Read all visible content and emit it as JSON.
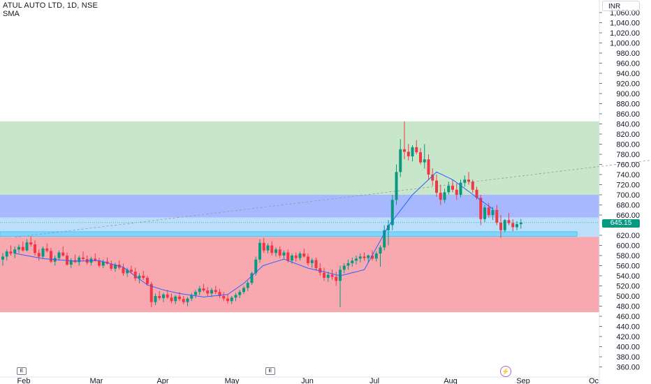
{
  "header": {
    "title": "ATUL AUTO LTD, 1D, NSE",
    "indicator": "SMA",
    "currency": "INR"
  },
  "last_price_label": "645.15",
  "markers": {
    "earnings_1": "E",
    "earnings_2": "E"
  },
  "colors": {
    "up": "#089981",
    "down": "#f23645",
    "sma": "#2962ff",
    "zone_green": "#c8e6c9",
    "zone_blue": "#a8b8ff",
    "zone_lightblue": "#bbdefb",
    "zone_support": "#81d4fa",
    "zone_red": "#f8a9b0"
  },
  "chart_data": {
    "type": "candlestick",
    "title": "ATUL AUTO LTD, 1D, NSE",
    "ylim": [
      350,
      1070
    ],
    "y_ticks": [
      "1,060.00",
      "1,040.00",
      "1,020.00",
      "1,000.00",
      "980.00",
      "960.00",
      "940.00",
      "920.00",
      "900.00",
      "880.00",
      "860.00",
      "840.00",
      "820.00",
      "800.00",
      "780.00",
      "760.00",
      "740.00",
      "720.00",
      "700.00",
      "680.00",
      "660.00",
      "645.15",
      "620.00",
      "600.00",
      "580.00",
      "560.00",
      "540.00",
      "520.00",
      "500.00",
      "480.00",
      "460.00",
      "440.00",
      "420.00",
      "400.00",
      "380.00",
      "360.00"
    ],
    "x_ticks": [
      "Feb",
      "Mar",
      "Apr",
      "May",
      "Jun",
      "Jul",
      "Aug",
      "Sep",
      "Oc"
    ],
    "zones": [
      {
        "from": 700,
        "to": 845,
        "color": "green"
      },
      {
        "from": 655,
        "to": 700,
        "color": "blue"
      },
      {
        "from": 617,
        "to": 655,
        "color": "lightblue"
      },
      {
        "from": 618,
        "to": 627,
        "color": "support"
      },
      {
        "from": 468,
        "to": 617,
        "color": "red"
      }
    ],
    "trendline": {
      "from": {
        "day": 3,
        "price": 616
      },
      "to": {
        "day": 210,
        "price": 815
      }
    },
    "ohlc": [
      [
        572,
        585,
        560,
        578
      ],
      [
        578,
        592,
        570,
        588
      ],
      [
        588,
        600,
        580,
        584
      ],
      [
        584,
        598,
        575,
        592
      ],
      [
        592,
        602,
        585,
        597
      ],
      [
        597,
        608,
        588,
        590
      ],
      [
        590,
        612,
        588,
        606
      ],
      [
        606,
        618,
        598,
        602
      ],
      [
        602,
        610,
        580,
        585
      ],
      [
        585,
        592,
        570,
        578
      ],
      [
        578,
        598,
        574,
        594
      ],
      [
        594,
        604,
        586,
        589
      ],
      [
        589,
        595,
        565,
        568
      ],
      [
        568,
        580,
        560,
        575
      ],
      [
        575,
        590,
        570,
        586
      ],
      [
        586,
        598,
        578,
        580
      ],
      [
        580,
        586,
        560,
        562
      ],
      [
        562,
        575,
        555,
        571
      ],
      [
        571,
        582,
        565,
        567
      ],
      [
        567,
        580,
        560,
        576
      ],
      [
        576,
        588,
        570,
        573
      ],
      [
        573,
        580,
        562,
        566
      ],
      [
        566,
        578,
        560,
        574
      ],
      [
        574,
        584,
        568,
        570
      ],
      [
        570,
        576,
        556,
        560
      ],
      [
        560,
        572,
        555,
        568
      ],
      [
        568,
        576,
        562,
        564
      ],
      [
        564,
        570,
        550,
        554
      ],
      [
        554,
        566,
        548,
        562
      ],
      [
        562,
        570,
        552,
        556
      ],
      [
        556,
        564,
        540,
        545
      ],
      [
        545,
        556,
        538,
        552
      ],
      [
        552,
        560,
        544,
        548
      ],
      [
        548,
        556,
        530,
        535
      ],
      [
        535,
        545,
        525,
        540
      ],
      [
        540,
        550,
        532,
        536
      ],
      [
        536,
        540,
        520,
        524
      ],
      [
        524,
        528,
        478,
        488
      ],
      [
        488,
        505,
        482,
        500
      ],
      [
        500,
        510,
        492,
        496
      ],
      [
        496,
        506,
        488,
        503
      ],
      [
        503,
        512,
        494,
        497
      ],
      [
        497,
        505,
        486,
        490
      ],
      [
        490,
        502,
        484,
        499
      ],
      [
        499,
        508,
        490,
        494
      ],
      [
        494,
        500,
        484,
        488
      ],
      [
        488,
        498,
        480,
        495
      ],
      [
        495,
        506,
        490,
        502
      ],
      [
        502,
        512,
        496,
        508
      ],
      [
        508,
        520,
        502,
        515
      ],
      [
        515,
        524,
        508,
        511
      ],
      [
        511,
        518,
        500,
        505
      ],
      [
        505,
        516,
        498,
        512
      ],
      [
        512,
        520,
        504,
        508
      ],
      [
        508,
        514,
        496,
        500
      ],
      [
        500,
        508,
        490,
        495
      ],
      [
        495,
        503,
        485,
        490
      ],
      [
        490,
        500,
        484,
        497
      ],
      [
        497,
        506,
        490,
        502
      ],
      [
        502,
        512,
        496,
        508
      ],
      [
        508,
        520,
        504,
        516
      ],
      [
        516,
        530,
        510,
        526
      ],
      [
        526,
        548,
        522,
        545
      ],
      [
        545,
        578,
        540,
        572
      ],
      [
        572,
        612,
        566,
        605
      ],
      [
        605,
        615,
        585,
        590
      ],
      [
        590,
        604,
        584,
        600
      ],
      [
        600,
        608,
        580,
        585
      ],
      [
        585,
        596,
        578,
        592
      ],
      [
        592,
        598,
        575,
        580
      ],
      [
        580,
        590,
        572,
        586
      ],
      [
        586,
        592,
        566,
        570
      ],
      [
        570,
        584,
        564,
        580
      ],
      [
        580,
        586,
        568,
        575
      ],
      [
        575,
        588,
        570,
        584
      ],
      [
        584,
        594,
        576,
        578
      ],
      [
        578,
        584,
        560,
        565
      ],
      [
        565,
        575,
        556,
        571
      ],
      [
        571,
        576,
        550,
        555
      ],
      [
        555,
        565,
        540,
        546
      ],
      [
        546,
        556,
        530,
        536
      ],
      [
        536,
        548,
        528,
        542
      ],
      [
        542,
        552,
        532,
        538
      ],
      [
        538,
        548,
        520,
        530
      ],
      [
        530,
        560,
        478,
        552
      ],
      [
        552,
        565,
        545,
        560
      ],
      [
        560,
        572,
        552,
        565
      ],
      [
        565,
        576,
        558,
        570
      ],
      [
        570,
        580,
        562,
        574
      ],
      [
        574,
        584,
        566,
        578
      ],
      [
        578,
        586,
        570,
        575
      ],
      [
        575,
        582,
        566,
        580
      ],
      [
        580,
        590,
        570,
        574
      ],
      [
        574,
        588,
        568,
        584
      ],
      [
        584,
        600,
        558,
        596
      ],
      [
        596,
        640,
        590,
        630
      ],
      [
        630,
        650,
        600,
        640
      ],
      [
        640,
        700,
        630,
        690
      ],
      [
        690,
        760,
        680,
        745
      ],
      [
        745,
        810,
        735,
        790
      ],
      [
        790,
        845,
        770,
        785
      ],
      [
        785,
        800,
        768,
        776
      ],
      [
        776,
        798,
        766,
        794
      ],
      [
        794,
        808,
        780,
        784
      ],
      [
        784,
        792,
        760,
        764
      ],
      [
        764,
        800,
        752,
        770
      ],
      [
        770,
        780,
        730,
        740
      ],
      [
        740,
        752,
        718,
        728
      ],
      [
        728,
        740,
        696,
        704
      ],
      [
        704,
        720,
        680,
        690
      ],
      [
        690,
        712,
        684,
        705
      ],
      [
        705,
        726,
        700,
        718
      ],
      [
        718,
        730,
        705,
        710
      ],
      [
        710,
        722,
        690,
        700
      ],
      [
        700,
        730,
        695,
        724
      ],
      [
        724,
        738,
        716,
        730
      ],
      [
        730,
        745,
        720,
        726
      ],
      [
        726,
        730,
        704,
        710
      ],
      [
        710,
        716,
        690,
        694
      ],
      [
        694,
        700,
        640,
        652
      ],
      [
        652,
        680,
        646,
        675
      ],
      [
        675,
        684,
        655,
        660
      ],
      [
        660,
        676,
        650,
        670
      ],
      [
        670,
        680,
        640,
        645
      ],
      [
        645,
        660,
        615,
        630
      ],
      [
        630,
        652,
        626,
        650
      ],
      [
        650,
        664,
        640,
        644
      ],
      [
        644,
        652,
        628,
        636
      ],
      [
        636,
        648,
        630,
        642
      ],
      [
        642,
        652,
        633,
        645
      ]
    ],
    "sma": [
      [
        8,
        584
      ],
      [
        25,
        574
      ],
      [
        45,
        569
      ],
      [
        60,
        570
      ],
      [
        75,
        557
      ],
      [
        90,
        522
      ],
      [
        100,
        512
      ],
      [
        110,
        505
      ],
      [
        125,
        498
      ],
      [
        140,
        503
      ],
      [
        150,
        525
      ],
      [
        162,
        560
      ],
      [
        175,
        573
      ],
      [
        190,
        555
      ],
      [
        200,
        548
      ],
      [
        210,
        540
      ],
      [
        225,
        552
      ],
      [
        240,
        638
      ],
      [
        255,
        700
      ],
      [
        265,
        730
      ],
      [
        270,
        745
      ],
      [
        280,
        730
      ],
      [
        295,
        695
      ],
      [
        305,
        672
      ]
    ]
  }
}
